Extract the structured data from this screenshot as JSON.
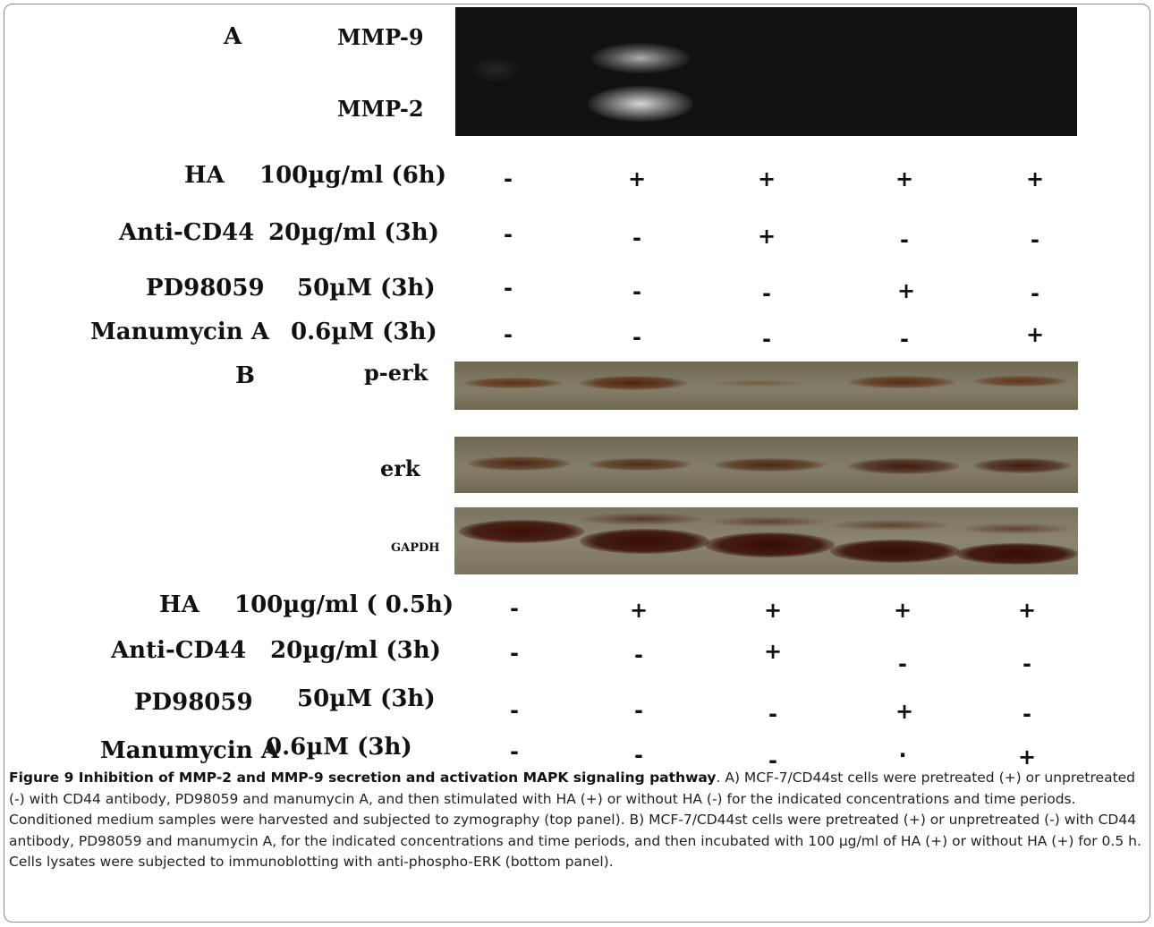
{
  "panel_a": {
    "letter": "A",
    "bands": [
      "MMP-9",
      "MMP-2"
    ],
    "conditions": [
      {
        "label": "HA",
        "dose": "100µg/ml (6h)",
        "signs": [
          "-",
          "+",
          "+",
          "+",
          "+"
        ]
      },
      {
        "label": "Anti-CD44",
        "dose": "20µg/ml (3h)",
        "signs": [
          "-",
          "-",
          "+",
          "-",
          "-"
        ]
      },
      {
        "label": "PD98059",
        "dose": "50µM (3h)",
        "signs": [
          "-",
          "-",
          "-",
          "+",
          "-"
        ]
      },
      {
        "label": "Manumycin A",
        "dose": "0.6µM (3h)",
        "signs": [
          "-",
          "-",
          "-",
          "-",
          "+"
        ]
      }
    ]
  },
  "panel_b": {
    "letter": "B",
    "blots": [
      "p-erk",
      "erk",
      "GAPDH"
    ],
    "conditions": [
      {
        "label": "HA",
        "dose": "100µg/ml ( 0.5h)",
        "signs": [
          "-",
          "+",
          "+",
          "+",
          "+"
        ]
      },
      {
        "label": "Anti-CD44",
        "dose": "20µg/ml (3h)",
        "signs": [
          "-",
          "-",
          "+",
          "-",
          "-"
        ]
      },
      {
        "label": "PD98059",
        "dose": "50µM (3h)",
        "signs": [
          "-",
          "-",
          "-",
          "+",
          "-"
        ]
      },
      {
        "label": "Manumycin A",
        "dose": "0.6µM (3h)",
        "signs": [
          "-",
          "-",
          "-",
          ".",
          "+"
        ]
      }
    ]
  },
  "caption": {
    "title": "Figure 9 Inhibition of MMP-2 and MMP-9 secretion and activation MAPK signaling pathway",
    "text": ". A) MCF-7/CD44st cells were pretreated (+) or unpretreated (-) with CD44 antibody, PD98059 and manumycin A, and then stimulated with HA (+) or without HA (-) for the indicated concentrations and time periods. Conditioned medium samples were harvested and subjected to zymography (top panel). B) MCF-7/CD44st cells were pretreated (+) or unpretreated (-) with CD44 antibody, PD98059 and manumycin A, for the indicated concentrations and time periods, and then incubated with 100 µg/ml of HA (+) or without HA (+) for 0.5 h. Cells lysates were subjected to immunoblotting with anti-phospho-ERK (bottom panel)."
  }
}
